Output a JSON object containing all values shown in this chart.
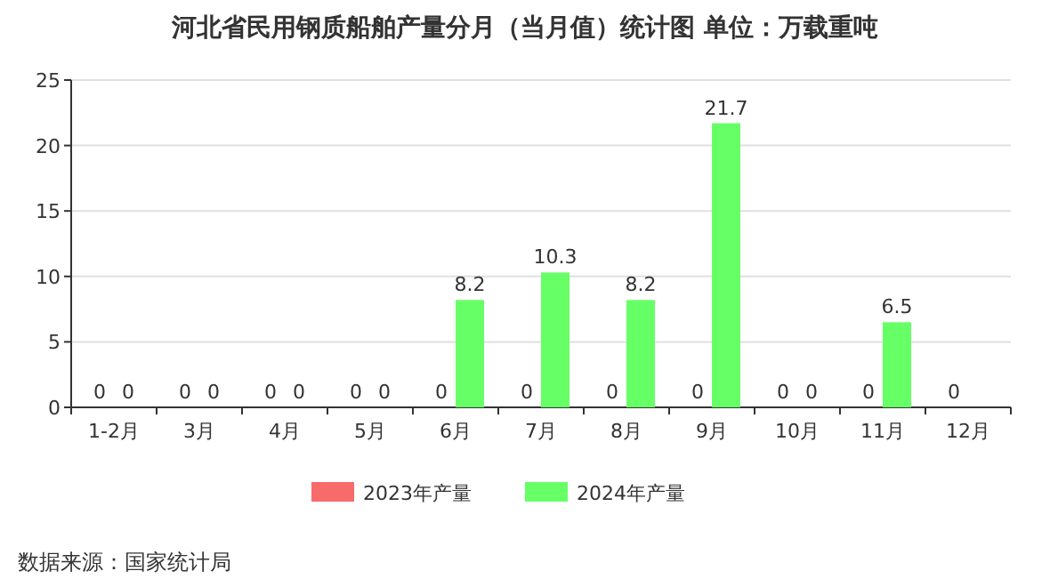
{
  "chart_data": {
    "type": "bar",
    "title": "河北省民用钢质船舶产量分月（当月值）统计图  单位：万载重吨",
    "categories": [
      "1-2月",
      "3月",
      "4月",
      "5月",
      "6月",
      "7月",
      "8月",
      "9月",
      "10月",
      "11月",
      "12月"
    ],
    "series": [
      {
        "name": "2023年产量",
        "color": "#f86b6b",
        "values": [
          0,
          0,
          0,
          0,
          0,
          0,
          0,
          0,
          0,
          0,
          0
        ]
      },
      {
        "name": "2024年产量",
        "color": "#66ff66",
        "values": [
          0,
          0,
          0,
          0,
          8.2,
          10.3,
          8.2,
          21.7,
          0,
          6.5,
          null
        ]
      }
    ],
    "ylim": [
      0,
      25
    ],
    "yticks": [
      0,
      5,
      10,
      15,
      20,
      25
    ],
    "grid": "y",
    "legend": "bottom",
    "data_labels": true,
    "annotations": [
      "数据来源：国家统计局"
    ]
  }
}
